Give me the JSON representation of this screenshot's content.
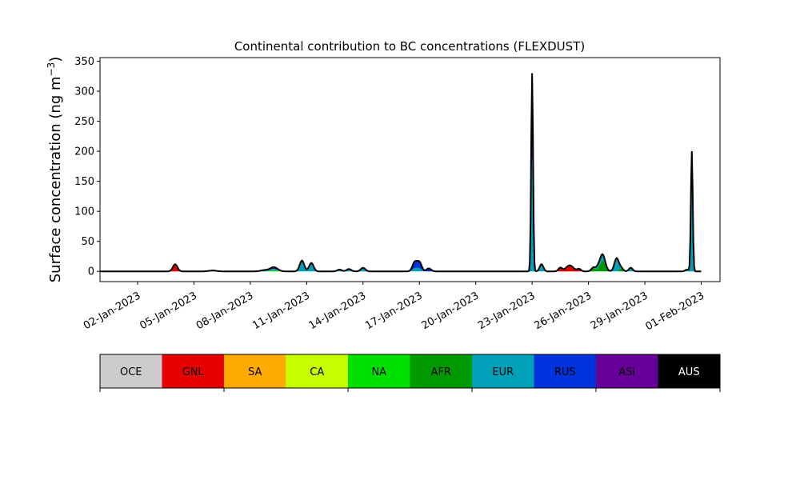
{
  "chart_data": {
    "type": "area",
    "stacked": true,
    "title": "Continental contribution to BC concentrations (FLEXDUST)",
    "ylabel": "Surface concentration (ng m",
    "ylabel_sup": "−3",
    "ylabel_close": ")",
    "ylim": [
      -17,
      356
    ],
    "yticks": [
      0,
      50,
      100,
      150,
      200,
      250,
      300,
      350
    ],
    "x_start": "2022-12-31",
    "x_end": "2023-02-02",
    "x_data_range": [
      "2022-12-31",
      "2023-02-01"
    ],
    "xticks": [
      {
        "date": "2023-01-02",
        "label": "02-Jan-2023"
      },
      {
        "date": "2023-01-05",
        "label": "05-Jan-2023"
      },
      {
        "date": "2023-01-08",
        "label": "08-Jan-2023"
      },
      {
        "date": "2023-01-11",
        "label": "11-Jan-2023"
      },
      {
        "date": "2023-01-14",
        "label": "14-Jan-2023"
      },
      {
        "date": "2023-01-17",
        "label": "17-Jan-2023"
      },
      {
        "date": "2023-01-20",
        "label": "20-Jan-2023"
      },
      {
        "date": "2023-01-23",
        "label": "23-Jan-2023"
      },
      {
        "date": "2023-01-26",
        "label": "26-Jan-2023"
      },
      {
        "date": "2023-01-29",
        "label": "29-Jan-2023"
      },
      {
        "date": "2023-02-01",
        "label": "01-Feb-2023"
      }
    ],
    "grid": false,
    "legend_position": "below",
    "series": [
      {
        "name": "OCE",
        "color": "#cccccc",
        "text_color": "#000000",
        "peaks": []
      },
      {
        "name": "GNL",
        "color": "#e60000",
        "text_color": "#000000",
        "peaks": [
          [
            "2023-01-04T00:00",
            12,
            0.12
          ],
          [
            "2023-01-25T00:00",
            10,
            0.2
          ],
          [
            "2023-01-24T12:00",
            6,
            0.1
          ],
          [
            "2023-01-25T12:00",
            4,
            0.1
          ]
        ]
      },
      {
        "name": "SA",
        "color": "#ffaa00",
        "text_color": "#000000",
        "peaks": []
      },
      {
        "name": "CA",
        "color": "#c8ff00",
        "text_color": "#000000",
        "peaks": []
      },
      {
        "name": "NA",
        "color": "#00e000",
        "text_color": "#000000",
        "peaks": [
          [
            "2023-01-06T00:00",
            1.5,
            0.2
          ],
          [
            "2023-01-09T06:00",
            2,
            0.2
          ]
        ]
      },
      {
        "name": "AFR",
        "color": "#009900",
        "text_color": "#000000",
        "peaks": [
          [
            "2023-01-26T18:00",
            18,
            0.15
          ],
          [
            "2023-01-26T06:00",
            6,
            0.1
          ],
          [
            "2023-01-27T18:00",
            5,
            0.1
          ]
        ]
      },
      {
        "name": "EUR",
        "color": "#00a0b8",
        "text_color": "#000000",
        "peaks": [
          [
            "2023-01-08T18:00",
            2,
            0.2
          ],
          [
            "2023-01-09T06:00",
            2,
            0.2
          ],
          [
            "2023-01-10T18:00",
            18,
            0.12
          ],
          [
            "2023-01-11T06:00",
            14,
            0.12
          ],
          [
            "2023-01-12T18:00",
            3,
            0.12
          ],
          [
            "2023-01-13T06:00",
            4,
            0.12
          ],
          [
            "2023-01-14T00:00",
            6,
            0.12
          ],
          [
            "2023-01-16T18:00",
            5,
            0.12
          ],
          [
            "2023-01-17T00:00",
            5,
            0.12
          ],
          [
            "2023-01-23T00:00",
            190,
            0.05
          ],
          [
            "2023-01-23T12:00",
            12,
            0.1
          ],
          [
            "2023-01-26T12:00",
            6,
            0.12
          ],
          [
            "2023-01-26T18:00",
            10,
            0.12
          ],
          [
            "2023-01-27T12:00",
            22,
            0.12
          ],
          [
            "2023-01-28T06:00",
            6,
            0.1
          ],
          [
            "2023-01-31T12:00",
            140,
            0.05
          ],
          [
            "2023-01-31T06:00",
            3,
            0.1
          ]
        ]
      },
      {
        "name": "RUS",
        "color": "#0033dd",
        "text_color": "#000000",
        "peaks": [
          [
            "2023-01-16T18:00",
            10,
            0.12
          ],
          [
            "2023-01-17T00:00",
            10,
            0.12
          ],
          [
            "2023-01-17T12:00",
            5,
            0.12
          ],
          [
            "2023-01-23T00:00",
            100,
            0.05
          ],
          [
            "2023-01-31T12:00",
            45,
            0.05
          ]
        ]
      },
      {
        "name": "ASI",
        "color": "#660099",
        "text_color": "#000000",
        "peaks": [
          [
            "2023-01-23T00:00",
            40,
            0.05
          ],
          [
            "2023-01-31T12:00",
            15,
            0.05
          ],
          [
            "2023-01-09T06:00",
            3,
            0.2
          ]
        ]
      },
      {
        "name": "AUS",
        "color": "#000000",
        "text_color": "#ffffff",
        "peaks": []
      }
    ],
    "total_outline_color": "#000000"
  }
}
